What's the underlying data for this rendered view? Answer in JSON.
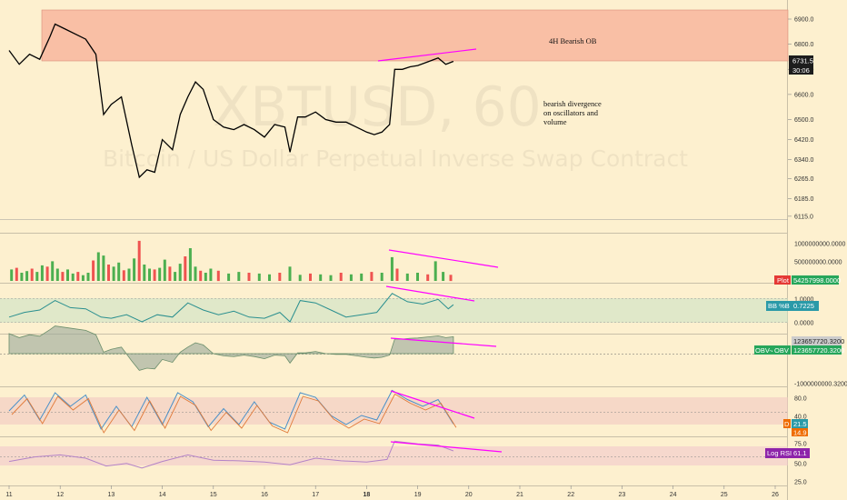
{
  "chart": {
    "watermark_symbol": "XBTUSD, 60",
    "watermark_desc": "Bitcoin / US Dollar Perpetual Inverse Swap Contract",
    "annotation_ob": "4H Bearish OB",
    "annotation_div_1": "bearish divergence",
    "annotation_div_2": "on oscillators and",
    "annotation_div_3": "volume",
    "price_tag": "6731.5",
    "countdown_tag": "30:06",
    "colors": {
      "background": "#fdf0cf",
      "ob_zone": "#f8b9a0",
      "divergence": "#ff00ff",
      "up": "#4caf50",
      "down": "#ef5350",
      "bb_line": "#2a8f8f",
      "rsi_line": "#b383c7"
    }
  },
  "axes": {
    "price_ticks": [
      "6900.0",
      "6800.0",
      "6700.0",
      "6600.0",
      "6500.0",
      "6420.0",
      "6340.0",
      "6265.0",
      "6185.0",
      "6115.0"
    ],
    "x_ticks": [
      "11",
      "12",
      "13",
      "14",
      "15",
      "16",
      "17",
      "18",
      "19",
      "20",
      "21",
      "22",
      "23",
      "24",
      "25",
      "26"
    ],
    "volume_ticks": [
      "1000000000.0000",
      "500000000.0000"
    ],
    "bb_ticks": [
      "1.0000",
      "0.0000"
    ],
    "obv_ticks": [
      "123657720.3200",
      "-1000000000.3200"
    ],
    "stoch_ticks": [
      "80.0",
      "40.0"
    ],
    "rsi_ticks": [
      "75.0",
      "50.0",
      "25.0"
    ]
  },
  "indicators": {
    "volume": {
      "label": "Plot",
      "value": "54257998.0000"
    },
    "bb": {
      "label": "BB %B",
      "value": "0.7225"
    },
    "obv": {
      "label_a": "OBV-4",
      "label_b": "OBV",
      "value": "123657720.3200"
    },
    "stoch": {
      "label_d": "D",
      "value_k": "21.5",
      "value_d": "14.9"
    },
    "rsi": {
      "label": "Log RSI",
      "value": "61.1"
    }
  },
  "chart_data": {
    "type": "line",
    "title": "XBTUSD, 60",
    "x_unit": "day of month (hourly candles)",
    "price_close": [
      [
        11.0,
        6775
      ],
      [
        11.2,
        6720
      ],
      [
        11.4,
        6760
      ],
      [
        11.6,
        6740
      ],
      [
        11.8,
        6830
      ],
      [
        11.9,
        6880
      ],
      [
        12.1,
        6860
      ],
      [
        12.3,
        6840
      ],
      [
        12.5,
        6820
      ],
      [
        12.7,
        6760
      ],
      [
        12.85,
        6520
      ],
      [
        13.0,
        6560
      ],
      [
        13.2,
        6590
      ],
      [
        13.4,
        6400
      ],
      [
        13.55,
        6270
      ],
      [
        13.7,
        6300
      ],
      [
        13.85,
        6290
      ],
      [
        14.0,
        6420
      ],
      [
        14.2,
        6380
      ],
      [
        14.35,
        6520
      ],
      [
        14.5,
        6590
      ],
      [
        14.65,
        6650
      ],
      [
        14.8,
        6620
      ],
      [
        15.0,
        6500
      ],
      [
        15.2,
        6470
      ],
      [
        15.4,
        6460
      ],
      [
        15.6,
        6480
      ],
      [
        15.8,
        6460
      ],
      [
        16.0,
        6430
      ],
      [
        16.2,
        6480
      ],
      [
        16.4,
        6470
      ],
      [
        16.5,
        6370
      ],
      [
        16.65,
        6510
      ],
      [
        16.8,
        6510
      ],
      [
        17.0,
        6530
      ],
      [
        17.2,
        6500
      ],
      [
        17.4,
        6490
      ],
      [
        17.6,
        6490
      ],
      [
        17.8,
        6470
      ],
      [
        18.0,
        6450
      ],
      [
        18.15,
        6440
      ],
      [
        18.3,
        6450
      ],
      [
        18.45,
        6480
      ],
      [
        18.55,
        6700
      ],
      [
        18.7,
        6700
      ],
      [
        18.85,
        6710
      ],
      [
        19.0,
        6715
      ],
      [
        19.2,
        6730
      ],
      [
        19.4,
        6745
      ],
      [
        19.55,
        6720
      ],
      [
        19.7,
        6731.5
      ]
    ],
    "volume_bars": [
      [
        11.05,
        0.28
      ],
      [
        11.15,
        0.32
      ],
      [
        11.25,
        0.2
      ],
      [
        11.35,
        0.24
      ],
      [
        11.45,
        0.3
      ],
      [
        11.55,
        0.22
      ],
      [
        11.65,
        0.38
      ],
      [
        11.75,
        0.35
      ],
      [
        11.85,
        0.48
      ],
      [
        11.95,
        0.3
      ],
      [
        12.05,
        0.22
      ],
      [
        12.15,
        0.28
      ],
      [
        12.25,
        0.18
      ],
      [
        12.35,
        0.22
      ],
      [
        12.45,
        0.14
      ],
      [
        12.55,
        0.2
      ],
      [
        12.65,
        0.5
      ],
      [
        12.75,
        0.7
      ],
      [
        12.85,
        0.62
      ],
      [
        12.95,
        0.4
      ],
      [
        13.05,
        0.35
      ],
      [
        13.15,
        0.45
      ],
      [
        13.25,
        0.26
      ],
      [
        13.35,
        0.3
      ],
      [
        13.45,
        0.55
      ],
      [
        13.55,
        0.98
      ],
      [
        13.65,
        0.4
      ],
      [
        13.75,
        0.3
      ],
      [
        13.85,
        0.28
      ],
      [
        13.95,
        0.32
      ],
      [
        14.05,
        0.52
      ],
      [
        14.15,
        0.35
      ],
      [
        14.25,
        0.22
      ],
      [
        14.35,
        0.42
      ],
      [
        14.45,
        0.6
      ],
      [
        14.55,
        0.8
      ],
      [
        14.65,
        0.35
      ],
      [
        14.75,
        0.25
      ],
      [
        14.85,
        0.2
      ],
      [
        14.95,
        0.3
      ],
      [
        15.1,
        0.25
      ],
      [
        15.3,
        0.18
      ],
      [
        15.5,
        0.22
      ],
      [
        15.7,
        0.2
      ],
      [
        15.9,
        0.18
      ],
      [
        16.1,
        0.16
      ],
      [
        16.3,
        0.2
      ],
      [
        16.5,
        0.35
      ],
      [
        16.7,
        0.15
      ],
      [
        16.9,
        0.18
      ],
      [
        17.1,
        0.16
      ],
      [
        17.3,
        0.14
      ],
      [
        17.5,
        0.2
      ],
      [
        17.7,
        0.16
      ],
      [
        17.9,
        0.18
      ],
      [
        18.1,
        0.22
      ],
      [
        18.3,
        0.2
      ],
      [
        18.5,
        0.58
      ],
      [
        18.6,
        0.3
      ],
      [
        18.8,
        0.18
      ],
      [
        19.0,
        0.2
      ],
      [
        19.2,
        0.16
      ],
      [
        19.35,
        0.48
      ],
      [
        19.5,
        0.22
      ],
      [
        19.65,
        0.15
      ]
    ],
    "bb_percent": [
      [
        11.0,
        0.2
      ],
      [
        11.3,
        0.4
      ],
      [
        11.6,
        0.5
      ],
      [
        11.9,
        0.9
      ],
      [
        12.2,
        0.6
      ],
      [
        12.5,
        0.55
      ],
      [
        12.8,
        0.2
      ],
      [
        13.0,
        0.15
      ],
      [
        13.3,
        0.3
      ],
      [
        13.6,
        0.0
      ],
      [
        13.9,
        0.3
      ],
      [
        14.2,
        0.2
      ],
      [
        14.5,
        0.8
      ],
      [
        14.8,
        0.5
      ],
      [
        15.1,
        0.3
      ],
      [
        15.4,
        0.45
      ],
      [
        15.7,
        0.2
      ],
      [
        16.0,
        0.15
      ],
      [
        16.3,
        0.4
      ],
      [
        16.5,
        0.0
      ],
      [
        16.7,
        0.9
      ],
      [
        17.0,
        0.8
      ],
      [
        17.3,
        0.5
      ],
      [
        17.6,
        0.2
      ],
      [
        17.9,
        0.3
      ],
      [
        18.2,
        0.4
      ],
      [
        18.5,
        1.2
      ],
      [
        18.8,
        0.85
      ],
      [
        19.1,
        0.75
      ],
      [
        19.4,
        0.95
      ],
      [
        19.6,
        0.55
      ],
      [
        19.7,
        0.7225
      ]
    ],
    "stoch_k": [
      [
        11.0,
        50
      ],
      [
        11.3,
        85
      ],
      [
        11.6,
        30
      ],
      [
        11.9,
        90
      ],
      [
        12.2,
        60
      ],
      [
        12.5,
        85
      ],
      [
        12.8,
        10
      ],
      [
        13.1,
        60
      ],
      [
        13.4,
        15
      ],
      [
        13.7,
        80
      ],
      [
        14.0,
        20
      ],
      [
        14.3,
        90
      ],
      [
        14.6,
        70
      ],
      [
        14.9,
        15
      ],
      [
        15.2,
        55
      ],
      [
        15.5,
        20
      ],
      [
        15.8,
        70
      ],
      [
        16.1,
        25
      ],
      [
        16.4,
        10
      ],
      [
        16.7,
        90
      ],
      [
        17.0,
        80
      ],
      [
        17.3,
        40
      ],
      [
        17.6,
        20
      ],
      [
        17.9,
        40
      ],
      [
        18.2,
        30
      ],
      [
        18.5,
        95
      ],
      [
        18.8,
        75
      ],
      [
        19.1,
        60
      ],
      [
        19.4,
        75
      ],
      [
        19.7,
        21.5
      ]
    ],
    "rsi": [
      [
        11.0,
        45
      ],
      [
        11.5,
        52
      ],
      [
        12.0,
        55
      ],
      [
        12.5,
        50
      ],
      [
        12.9,
        38
      ],
      [
        13.3,
        42
      ],
      [
        13.6,
        35
      ],
      [
        14.0,
        45
      ],
      [
        14.5,
        55
      ],
      [
        15.0,
        47
      ],
      [
        15.5,
        46
      ],
      [
        16.0,
        44
      ],
      [
        16.5,
        40
      ],
      [
        17.0,
        50
      ],
      [
        17.5,
        46
      ],
      [
        18.0,
        44
      ],
      [
        18.4,
        48
      ],
      [
        18.55,
        76
      ],
      [
        19.0,
        72
      ],
      [
        19.4,
        70
      ],
      [
        19.7,
        61.1
      ]
    ]
  }
}
